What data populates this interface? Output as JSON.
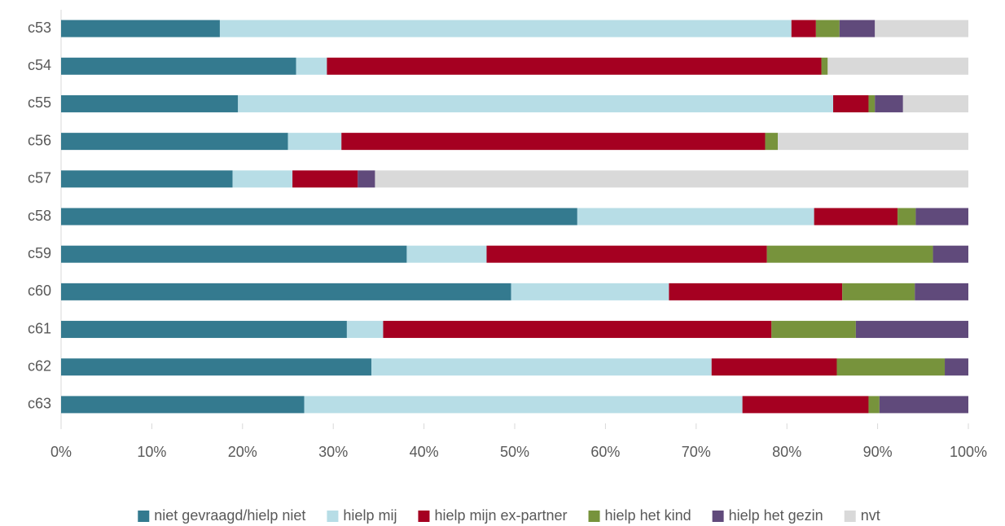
{
  "chart_data": {
    "type": "stacked-bar-horizontal",
    "categories": [
      "c53",
      "c54",
      "c55",
      "c56",
      "c57",
      "c58",
      "c59",
      "c60",
      "c61",
      "c62",
      "c63"
    ],
    "series": [
      {
        "name": "niet gevraagd/hielp niet",
        "color": "#347a8f",
        "values": [
          17.5,
          25.9,
          19.5,
          25.0,
          18.9,
          56.9,
          38.1,
          49.6,
          31.5,
          34.2,
          26.8
        ]
      },
      {
        "name": "hielp mij",
        "color": "#b7dde6",
        "values": [
          63.0,
          3.4,
          65.6,
          5.9,
          6.6,
          26.1,
          8.8,
          17.4,
          4.0,
          37.5,
          48.3
        ]
      },
      {
        "name": "hielp mijn ex-partner",
        "color": "#a50021",
        "values": [
          2.7,
          54.5,
          3.9,
          46.7,
          7.2,
          9.2,
          30.9,
          19.1,
          42.8,
          13.8,
          13.9
        ]
      },
      {
        "name": "hielp het kind",
        "color": "#77933c",
        "values": [
          2.6,
          0.7,
          0.7,
          1.4,
          0,
          2.0,
          18.3,
          8.0,
          9.3,
          11.9,
          1.2
        ]
      },
      {
        "name": "hielp het gezin",
        "color": "#604a7b",
        "values": [
          3.9,
          0,
          3.1,
          0,
          1.9,
          5.8,
          3.9,
          5.9,
          12.4,
          2.6,
          9.8
        ]
      },
      {
        "name": "nvt",
        "color": "#d9d9d9",
        "values": [
          10.3,
          15.5,
          7.2,
          21.0,
          65.4,
          0,
          0,
          0,
          0,
          0,
          0
        ]
      }
    ],
    "xlim": [
      0,
      100
    ],
    "xticks": [
      {
        "value": 0,
        "label": "0%"
      },
      {
        "value": 10,
        "label": "10%"
      },
      {
        "value": 20,
        "label": "20%"
      },
      {
        "value": 30,
        "label": "30%"
      },
      {
        "value": 40,
        "label": "40%"
      },
      {
        "value": 50,
        "label": "50%"
      },
      {
        "value": 60,
        "label": "60%"
      },
      {
        "value": 70,
        "label": "70%"
      },
      {
        "value": 80,
        "label": "80%"
      },
      {
        "value": 90,
        "label": "90%"
      },
      {
        "value": 100,
        "label": "100%"
      }
    ],
    "legend": "bottom"
  }
}
